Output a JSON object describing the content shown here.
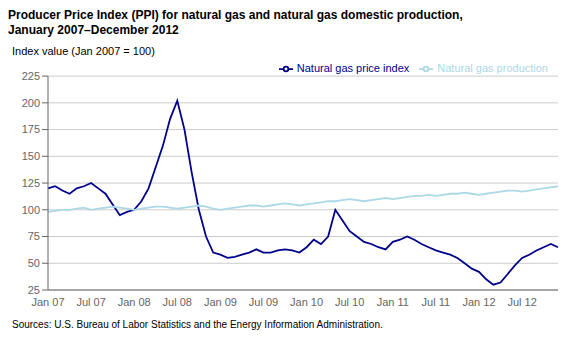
{
  "chart_data": {
    "type": "line",
    "title": "Producer Price Index (PPI) for natural gas and natural gas domestic production,",
    "subtitle": "January 2007–December 2012",
    "y_label": "Index value (Jan 2007 = 100)",
    "annotations": [
      "Sources: U.S. Bureau of Labor Statistics and the Energy Information Administration."
    ],
    "categories": [
      "Jan 07",
      null,
      null,
      null,
      null,
      null,
      "Jul 07",
      null,
      null,
      null,
      null,
      null,
      "Jan 08",
      null,
      null,
      null,
      null,
      null,
      "Jul 08",
      null,
      null,
      null,
      null,
      null,
      "Jan 09",
      null,
      null,
      null,
      null,
      null,
      "Jul 09",
      null,
      null,
      null,
      null,
      null,
      "Jan 10",
      null,
      null,
      null,
      null,
      null,
      "Jul 10",
      null,
      null,
      null,
      null,
      null,
      "Jan 11",
      null,
      null,
      null,
      null,
      null,
      "Jul 11",
      null,
      null,
      null,
      null,
      null,
      "Jan 12",
      null,
      null,
      null,
      null,
      null,
      "Jul 12",
      null,
      null,
      null,
      null,
      null
    ],
    "series": [
      {
        "name": "Natural gas price index",
        "color": "#00008B",
        "values": [
          120,
          122,
          118,
          115,
          120,
          122,
          125,
          120,
          115,
          105,
          95,
          98,
          100,
          108,
          120,
          140,
          160,
          185,
          202,
          175,
          135,
          100,
          75,
          60,
          58,
          55,
          56,
          58,
          60,
          63,
          60,
          60,
          62,
          63,
          62,
          60,
          65,
          72,
          68,
          75,
          100,
          90,
          80,
          75,
          70,
          68,
          65,
          63,
          70,
          72,
          75,
          72,
          68,
          65,
          62,
          60,
          58,
          55,
          50,
          45,
          42,
          35,
          30,
          32,
          40,
          48,
          55,
          58,
          62,
          65,
          68,
          65
        ]
      },
      {
        "name": "Natural gas production",
        "color": "#ADD8E6",
        "values": [
          98,
          99,
          100,
          100,
          101,
          102,
          100,
          101,
          102,
          103,
          102,
          101,
          100,
          101,
          102,
          103,
          103,
          102,
          101,
          102,
          103,
          104,
          103,
          101,
          100,
          101,
          102,
          103,
          104,
          104,
          103,
          104,
          105,
          106,
          105,
          104,
          105,
          106,
          107,
          108,
          108,
          109,
          110,
          109,
          108,
          109,
          110,
          111,
          110,
          111,
          112,
          113,
          113,
          114,
          113,
          114,
          115,
          115,
          116,
          115,
          114,
          115,
          116,
          117,
          118,
          118,
          117,
          118,
          119,
          120,
          121,
          122
        ]
      }
    ],
    "ylim": [
      25,
      225
    ],
    "yticks": [
      25,
      50,
      75,
      100,
      125,
      150,
      175,
      200,
      225
    ],
    "grid": true,
    "legend": "upper right"
  }
}
